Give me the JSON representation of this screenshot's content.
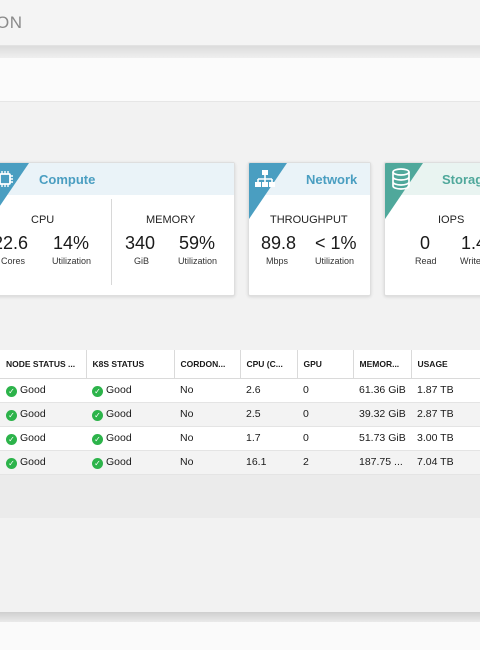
{
  "header": {
    "title": "ON"
  },
  "cards": {
    "compute": {
      "title": "Compute",
      "icon": "cpu-chip-icon",
      "cpu": {
        "label": "CPU",
        "cores_value": "22.6",
        "cores_label": "Cores",
        "util_value": "14%",
        "util_label": "Utilization"
      },
      "memory": {
        "label": "MEMORY",
        "gib_value": "340",
        "gib_label": "GiB",
        "util_value": "59%",
        "util_label": "Utilization"
      }
    },
    "network": {
      "title": "Network",
      "icon": "network-topology-icon",
      "throughput": {
        "label": "THROUGHPUT",
        "mbps_value": "89.8",
        "mbps_label": "Mbps",
        "util_value": "< 1%",
        "util_label": "Utilization"
      }
    },
    "storage": {
      "title": "Storag",
      "icon": "database-icon",
      "iops": {
        "label": "IOPS",
        "read_value": "0",
        "read_label": "Read",
        "write_value": "1.4",
        "write_label": "Write"
      }
    }
  },
  "colors": {
    "accent": "#4a9ec1",
    "storage_accent": "#4fa89b",
    "good": "#2cb34a"
  },
  "table": {
    "columns": [
      "NODE STATUS ...",
      "K8S STATUS",
      "CORDON...",
      "CPU (C...",
      "GPU",
      "MEMOR...",
      "USAGE"
    ],
    "rows": [
      {
        "node_status": "Good",
        "k8s_status": "Good",
        "cordon": "No",
        "cpu": "2.6",
        "gpu": "0",
        "memory": "61.36 GiB",
        "usage": "1.87 TB"
      },
      {
        "node_status": "Good",
        "k8s_status": "Good",
        "cordon": "No",
        "cpu": "2.5",
        "gpu": "0",
        "memory": "39.32 GiB",
        "usage": "2.87 TB"
      },
      {
        "node_status": "Good",
        "k8s_status": "Good",
        "cordon": "No",
        "cpu": "1.7",
        "gpu": "0",
        "memory": "51.73 GiB",
        "usage": "3.00 TB"
      },
      {
        "node_status": "Good",
        "k8s_status": "Good",
        "cordon": "No",
        "cpu": "16.1",
        "gpu": "2",
        "memory": "187.75 ...",
        "usage": "7.04 TB"
      }
    ]
  }
}
